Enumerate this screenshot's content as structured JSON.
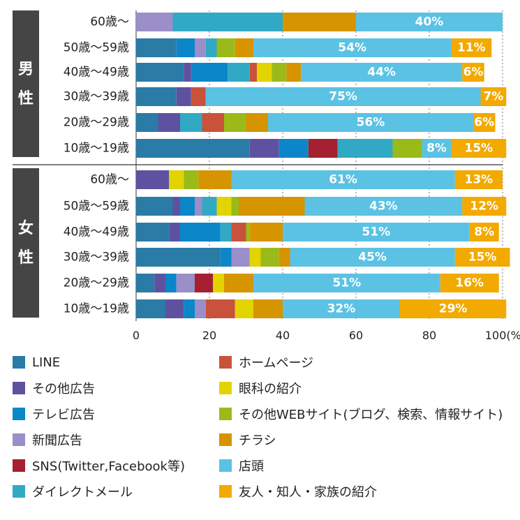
{
  "chart_data": {
    "type": "bar",
    "orientation": "horizontal",
    "stacked": true,
    "title": "",
    "xlabel": "",
    "ylabel": "",
    "xlim": [
      0,
      100
    ],
    "x_ticks": [
      "0",
      "20",
      "40",
      "60",
      "80",
      "100(%)"
    ],
    "x_tick_values": [
      0,
      20,
      40,
      60,
      80,
      100
    ],
    "grid": true,
    "legend_position": "bottom",
    "groups": [
      {
        "label": "男性",
        "categories": [
          "60歳〜",
          "50歳〜59歳",
          "40歳〜49歳",
          "30歳〜39歳",
          "20歳〜29歳",
          "10歳〜19歳"
        ]
      },
      {
        "label": "女性",
        "categories": [
          "60歳〜",
          "50歳〜59歳",
          "40歳〜49歳",
          "30歳〜39歳",
          "20歳〜29歳",
          "10歳〜19歳"
        ]
      }
    ],
    "series": [
      {
        "name": "LINE",
        "color": "#2a7ba6",
        "values": [
          0,
          11,
          13,
          11,
          6,
          31,
          0,
          10,
          9,
          23,
          5,
          8
        ]
      },
      {
        "name": "その他広告",
        "color": "#5e52a0",
        "values": [
          0,
          0,
          2,
          4,
          6,
          8,
          9,
          2,
          3,
          0,
          3,
          5
        ]
      },
      {
        "name": "テレビ広告",
        "color": "#0a86c9",
        "values": [
          0,
          5,
          10,
          0,
          0,
          8,
          0,
          4,
          11,
          3,
          3,
          3
        ]
      },
      {
        "name": "新聞広告",
        "color": "#9a8fc8",
        "values": [
          10,
          3,
          0,
          0,
          0,
          0,
          0,
          2,
          0,
          5,
          5,
          3
        ]
      },
      {
        "name": "SNS(Twitter,Facebook等)",
        "color": "#a52030",
        "values": [
          0,
          0,
          0,
          0,
          0,
          8,
          0,
          0,
          0,
          0,
          5,
          0
        ]
      },
      {
        "name": "ダイレクトメール",
        "color": "#31a9c4",
        "values": [
          30,
          3,
          6,
          0,
          6,
          15,
          0,
          4,
          3,
          0,
          0,
          0
        ]
      },
      {
        "name": "ホームページ",
        "color": "#c9533a",
        "values": [
          0,
          0,
          2,
          4,
          6,
          0,
          0,
          0,
          4,
          0,
          0,
          8
        ]
      },
      {
        "name": "眼科の紹介",
        "color": "#e2d400",
        "values": [
          0,
          0,
          4,
          0,
          0,
          0,
          4,
          4,
          0,
          3,
          3,
          5
        ]
      },
      {
        "name": "その他WEBサイト(ブログ、検索、情報サイト)",
        "color": "#9aba1a",
        "values": [
          0,
          5,
          4,
          0,
          6,
          8,
          4,
          2,
          1,
          5,
          0,
          0
        ]
      },
      {
        "name": "チラシ",
        "color": "#d69400",
        "values": [
          20,
          5,
          4,
          0,
          6,
          0,
          9,
          18,
          9,
          3,
          8,
          8
        ]
      },
      {
        "name": "店頭",
        "color": "#5bc2e4",
        "values": [
          40,
          54,
          44,
          75,
          56,
          8,
          61,
          43,
          51,
          45,
          51,
          32
        ]
      },
      {
        "name": "友人・知人・家族の紹介",
        "color": "#f2a900",
        "values": [
          0,
          11,
          6,
          7,
          6,
          15,
          13,
          12,
          8,
          15,
          16,
          29
        ]
      }
    ],
    "data_labels": [
      {
        "row": 0,
        "series": "店頭",
        "text": "40%"
      },
      {
        "row": 1,
        "series": "店頭",
        "text": "54%"
      },
      {
        "row": 1,
        "series": "友人・知人・家族の紹介",
        "text": "11%"
      },
      {
        "row": 2,
        "series": "店頭",
        "text": "44%"
      },
      {
        "row": 2,
        "series": "友人・知人・家族の紹介",
        "text": "6%"
      },
      {
        "row": 3,
        "series": "店頭",
        "text": "75%"
      },
      {
        "row": 3,
        "series": "友人・知人・家族の紹介",
        "text": "7%"
      },
      {
        "row": 4,
        "series": "店頭",
        "text": "56%"
      },
      {
        "row": 4,
        "series": "友人・知人・家族の紹介",
        "text": "6%"
      },
      {
        "row": 5,
        "series": "店頭",
        "text": "8%"
      },
      {
        "row": 5,
        "series": "友人・知人・家族の紹介",
        "text": "15%"
      },
      {
        "row": 6,
        "series": "店頭",
        "text": "61%"
      },
      {
        "row": 6,
        "series": "友人・知人・家族の紹介",
        "text": "13%"
      },
      {
        "row": 7,
        "series": "店頭",
        "text": "43%"
      },
      {
        "row": 7,
        "series": "友人・知人・家族の紹介",
        "text": "12%"
      },
      {
        "row": 8,
        "series": "店頭",
        "text": "51%"
      },
      {
        "row": 8,
        "series": "友人・知人・家族の紹介",
        "text": "8%"
      },
      {
        "row": 9,
        "series": "店頭",
        "text": "45%"
      },
      {
        "row": 9,
        "series": "友人・知人・家族の紹介",
        "text": "15%"
      },
      {
        "row": 10,
        "series": "店頭",
        "text": "51%"
      },
      {
        "row": 10,
        "series": "友人・知人・家族の紹介",
        "text": "16%"
      },
      {
        "row": 11,
        "series": "店頭",
        "text": "32%"
      },
      {
        "row": 11,
        "series": "友人・知人・家族の紹介",
        "text": "29%"
      }
    ]
  }
}
